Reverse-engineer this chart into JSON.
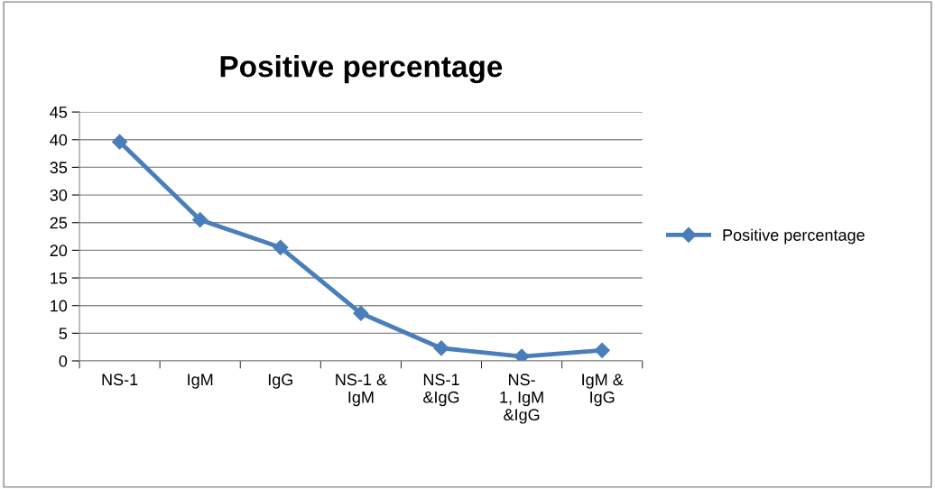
{
  "chart_data": {
    "type": "line",
    "title": "Positive percentage",
    "categories": [
      "NS-1",
      "IgM",
      "IgG",
      "NS-1 &\nIgM",
      "NS-1\n&IgG",
      "NS-\n1, IgM\n&IgG",
      "IgM &\nIgG"
    ],
    "series": [
      {
        "name": "Positive percentage",
        "color": "#4a7ebb",
        "values": [
          39.6,
          25.5,
          20.5,
          8.6,
          2.3,
          0.8,
          1.9
        ]
      }
    ],
    "ylim": [
      0,
      45
    ],
    "yticks": [
      0,
      5,
      10,
      15,
      20,
      25,
      30,
      35,
      40,
      45
    ],
    "grid": "y",
    "legend": "right",
    "marker": "diamond",
    "line_style": "solid"
  }
}
